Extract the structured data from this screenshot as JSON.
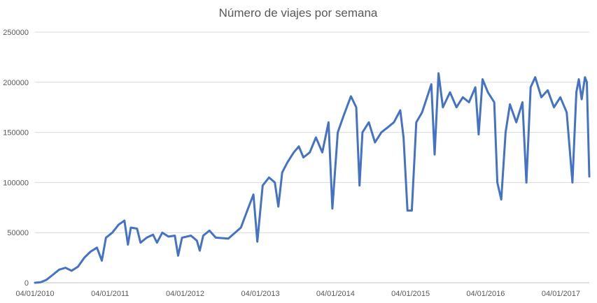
{
  "chart_data": {
    "type": "line",
    "title": "Número de viajes por semana",
    "xlabel": "",
    "ylabel": "",
    "ylim": [
      0,
      250000
    ],
    "yticks": [
      "0",
      "50000",
      "100000",
      "150000",
      "200000",
      "250000"
    ],
    "xlim": [
      "2010-01-04",
      "2017-05-22"
    ],
    "xticks": [
      {
        "label": "04/01/2010",
        "date": "2010-01-04"
      },
      {
        "label": "04/01/2011",
        "date": "2011-01-04"
      },
      {
        "label": "04/01/2012",
        "date": "2012-01-04"
      },
      {
        "label": "04/01/2013",
        "date": "2013-01-04"
      },
      {
        "label": "04/01/2014",
        "date": "2014-01-04"
      },
      {
        "label": "04/01/2015",
        "date": "2015-01-04"
      },
      {
        "label": "04/01/2016",
        "date": "2016-01-04"
      },
      {
        "label": "04/01/2017",
        "date": "2017-01-04"
      }
    ],
    "grid": true,
    "legend": "none",
    "line_color": "#4472c4",
    "series": [
      {
        "points": [
          [
            "2010-01-04",
            0
          ],
          [
            "2010-02-01",
            500
          ],
          [
            "2010-03-01",
            3000
          ],
          [
            "2010-04-01",
            8000
          ],
          [
            "2010-05-01",
            13000
          ],
          [
            "2010-06-01",
            15000
          ],
          [
            "2010-07-01",
            12000
          ],
          [
            "2010-08-01",
            16000
          ],
          [
            "2010-09-01",
            25000
          ],
          [
            "2010-10-01",
            31000
          ],
          [
            "2010-11-01",
            35000
          ],
          [
            "2010-11-25",
            22000
          ],
          [
            "2010-12-15",
            45000
          ],
          [
            "2011-01-15",
            50000
          ],
          [
            "2011-02-15",
            58000
          ],
          [
            "2011-03-15",
            62000
          ],
          [
            "2011-04-01",
            38000
          ],
          [
            "2011-04-15",
            55000
          ],
          [
            "2011-05-15",
            54000
          ],
          [
            "2011-06-01",
            40000
          ],
          [
            "2011-07-01",
            45000
          ],
          [
            "2011-08-01",
            48000
          ],
          [
            "2011-08-20",
            40000
          ],
          [
            "2011-09-15",
            50000
          ],
          [
            "2011-10-15",
            46000
          ],
          [
            "2011-11-15",
            47000
          ],
          [
            "2011-12-01",
            27000
          ],
          [
            "2011-12-20",
            45000
          ],
          [
            "2012-02-01",
            47000
          ],
          [
            "2012-03-01",
            42000
          ],
          [
            "2012-03-15",
            32000
          ],
          [
            "2012-04-01",
            47000
          ],
          [
            "2012-05-01",
            52000
          ],
          [
            "2012-06-01",
            45000
          ],
          [
            "2012-08-01",
            44000
          ],
          [
            "2012-10-01",
            55000
          ],
          [
            "2012-11-01",
            72000
          ],
          [
            "2012-12-01",
            88000
          ],
          [
            "2012-12-20",
            41000
          ],
          [
            "2013-01-15",
            97000
          ],
          [
            "2013-02-15",
            105000
          ],
          [
            "2013-03-15",
            100000
          ],
          [
            "2013-04-01",
            76000
          ],
          [
            "2013-04-20",
            110000
          ],
          [
            "2013-05-15",
            120000
          ],
          [
            "2013-06-15",
            130000
          ],
          [
            "2013-07-10",
            136000
          ],
          [
            "2013-08-01",
            125000
          ],
          [
            "2013-09-01",
            130000
          ],
          [
            "2013-10-01",
            145000
          ],
          [
            "2013-11-01",
            130000
          ],
          [
            "2013-12-01",
            160000
          ],
          [
            "2013-12-20",
            74000
          ],
          [
            "2014-01-15",
            150000
          ],
          [
            "2014-02-15",
            168000
          ],
          [
            "2014-03-20",
            186000
          ],
          [
            "2014-04-15",
            175000
          ],
          [
            "2014-05-01",
            97000
          ],
          [
            "2014-05-15",
            150000
          ],
          [
            "2014-06-15",
            160000
          ],
          [
            "2014-07-15",
            140000
          ],
          [
            "2014-08-15",
            150000
          ],
          [
            "2014-09-15",
            155000
          ],
          [
            "2014-10-15",
            160000
          ],
          [
            "2014-11-15",
            172000
          ],
          [
            "2014-12-01",
            145000
          ],
          [
            "2014-12-20",
            72000
          ],
          [
            "2015-01-10",
            72000
          ],
          [
            "2015-02-01",
            160000
          ],
          [
            "2015-03-01",
            170000
          ],
          [
            "2015-04-15",
            198000
          ],
          [
            "2015-05-01",
            128000
          ],
          [
            "2015-05-20",
            209000
          ],
          [
            "2015-06-10",
            175000
          ],
          [
            "2015-07-15",
            190000
          ],
          [
            "2015-08-15",
            175000
          ],
          [
            "2015-09-15",
            185000
          ],
          [
            "2015-10-15",
            180000
          ],
          [
            "2015-11-15",
            195000
          ],
          [
            "2015-12-01",
            148000
          ],
          [
            "2015-12-20",
            203000
          ],
          [
            "2016-01-15",
            190000
          ],
          [
            "2016-02-15",
            180000
          ],
          [
            "2016-03-01",
            100000
          ],
          [
            "2016-03-20",
            83000
          ],
          [
            "2016-04-10",
            150000
          ],
          [
            "2016-05-01",
            178000
          ],
          [
            "2016-06-01",
            160000
          ],
          [
            "2016-07-01",
            180000
          ],
          [
            "2016-07-20",
            100000
          ],
          [
            "2016-08-10",
            195000
          ],
          [
            "2016-09-01",
            205000
          ],
          [
            "2016-10-01",
            185000
          ],
          [
            "2016-11-01",
            192000
          ],
          [
            "2016-12-01",
            175000
          ],
          [
            "2017-01-01",
            185000
          ],
          [
            "2017-02-01",
            170000
          ],
          [
            "2017-03-01",
            100000
          ],
          [
            "2017-03-20",
            190000
          ],
          [
            "2017-04-01",
            203000
          ],
          [
            "2017-04-15",
            183000
          ],
          [
            "2017-05-01",
            205000
          ],
          [
            "2017-05-10",
            200000
          ],
          [
            "2017-05-22",
            106000
          ]
        ]
      }
    ]
  }
}
